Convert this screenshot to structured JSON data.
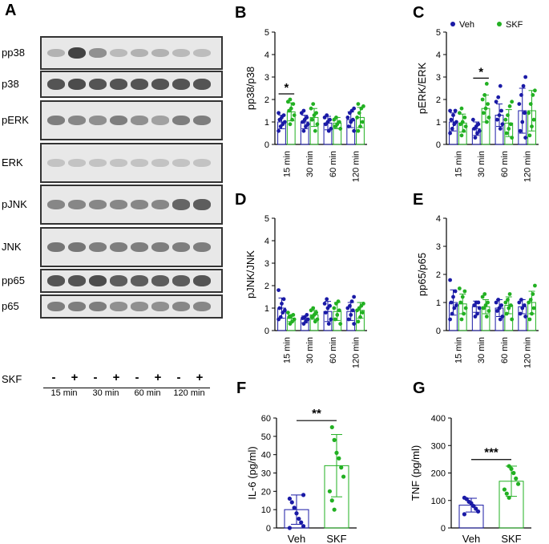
{
  "colors": {
    "veh": "#1a1aa6",
    "skf": "#22b022"
  },
  "panel_a": {
    "label": "A",
    "rows": [
      {
        "name": "pp38",
        "bands": [
          0.25,
          0.9,
          0.45,
          0.2,
          0.25,
          0.25,
          0.2,
          0.18
        ]
      },
      {
        "name": "p38",
        "bands": [
          0.8,
          0.85,
          0.8,
          0.8,
          0.8,
          0.8,
          0.8,
          0.8
        ]
      },
      {
        "name": "pERK",
        "bands": [
          0.55,
          0.5,
          0.45,
          0.55,
          0.45,
          0.35,
          0.55,
          0.55
        ]
      },
      {
        "name": "ERK",
        "bands": [
          0.15,
          0.15,
          0.15,
          0.15,
          0.15,
          0.15,
          0.15,
          0.15
        ]
      },
      {
        "name": "pJNK",
        "bands": [
          0.5,
          0.5,
          0.5,
          0.5,
          0.5,
          0.5,
          0.7,
          0.75
        ]
      },
      {
        "name": "JNK",
        "bands": [
          0.6,
          0.6,
          0.55,
          0.55,
          0.55,
          0.55,
          0.55,
          0.55
        ]
      },
      {
        "name": "pp65",
        "bands": [
          0.8,
          0.8,
          0.85,
          0.75,
          0.75,
          0.75,
          0.75,
          0.8
        ]
      },
      {
        "name": "p65",
        "bands": [
          0.55,
          0.55,
          0.55,
          0.45,
          0.45,
          0.45,
          0.5,
          0.5
        ]
      }
    ],
    "treatment_label": "SKF",
    "signs": [
      "-",
      "+",
      "-",
      "+",
      "-",
      "+",
      "-",
      "+"
    ],
    "timepoints": [
      "15 min",
      "30 min",
      "60 min",
      "120 min"
    ]
  },
  "chart_data": [
    {
      "panel": "B",
      "type": "bar",
      "ylabel": "pp38/p38",
      "ylim": [
        0,
        5
      ],
      "yticks": [
        0,
        1,
        2,
        3,
        4,
        5
      ],
      "categories": [
        "15 min",
        "30 min",
        "60 min",
        "120 min"
      ],
      "series": [
        {
          "name": "Veh",
          "values": [
            1.0,
            1.0,
            0.95,
            1.1
          ],
          "sd": [
            0.3,
            0.3,
            0.3,
            0.35
          ],
          "points": [
            [
              0.6,
              0.8,
              0.9,
              1.0,
              1.1,
              1.2,
              1.3,
              1.4
            ],
            [
              0.6,
              0.8,
              0.9,
              1.0,
              1.1,
              1.2,
              1.4,
              1.5
            ],
            [
              0.6,
              0.7,
              0.9,
              1.0,
              1.1,
              1.2,
              1.3
            ],
            [
              0.6,
              0.8,
              1.0,
              1.1,
              1.2,
              1.4,
              1.5,
              1.6
            ]
          ]
        },
        {
          "name": "SKF",
          "values": [
            1.45,
            1.2,
            0.95,
            1.2
          ],
          "sd": [
            0.4,
            0.4,
            0.25,
            0.45
          ],
          "points": [
            [
              0.9,
              1.1,
              1.3,
              1.5,
              1.6,
              1.8,
              1.9,
              2.0
            ],
            [
              0.6,
              0.9,
              1.1,
              1.3,
              1.4,
              1.6,
              1.8
            ],
            [
              0.7,
              0.8,
              0.9,
              1.0,
              1.1,
              1.2
            ],
            [
              0.6,
              0.8,
              1.0,
              1.2,
              1.4,
              1.6,
              1.7,
              1.8
            ]
          ]
        }
      ],
      "annotations": [
        {
          "text": "*",
          "group": 0
        }
      ]
    },
    {
      "panel": "C",
      "type": "bar",
      "ylabel": "pERK/ERK",
      "ylim": [
        0,
        5
      ],
      "yticks": [
        0,
        1,
        2,
        3,
        4,
        5
      ],
      "categories": [
        "15 min",
        "30 min",
        "60 min",
        "120 min"
      ],
      "legend": {
        "position": "top",
        "entries": [
          "Veh",
          "SKF"
        ]
      },
      "series": [
        {
          "name": "Veh",
          "values": [
            1.0,
            0.7,
            1.3,
            1.5
          ],
          "sd": [
            0.4,
            0.3,
            0.5,
            1.0
          ],
          "points": [
            [
              0.5,
              0.7,
              0.9,
              1.0,
              1.1,
              1.3,
              1.5,
              1.5
            ],
            [
              0.3,
              0.5,
              0.6,
              0.7,
              0.8,
              0.9,
              1.1
            ],
            [
              0.7,
              0.9,
              1.1,
              1.3,
              1.5,
              1.9,
              2.1,
              2.6
            ],
            [
              0.3,
              0.6,
              1.0,
              1.4,
              1.8,
              2.2,
              2.6,
              3.0
            ]
          ]
        },
        {
          "name": "SKF",
          "values": [
            0.95,
            1.6,
            0.95,
            1.5
          ],
          "sd": [
            0.4,
            0.6,
            0.6,
            0.9
          ],
          "points": [
            [
              0.4,
              0.6,
              0.8,
              0.9,
              1.0,
              1.2,
              1.4,
              1.6
            ],
            [
              1.0,
              1.2,
              1.4,
              1.6,
              1.8,
              2.0,
              2.2,
              2.7
            ],
            [
              0.3,
              0.5,
              0.7,
              0.9,
              1.1,
              1.3,
              1.7,
              1.9
            ],
            [
              0.4,
              0.8,
              1.1,
              1.4,
              1.8,
              2.2,
              2.4
            ]
          ]
        }
      ],
      "annotations": [
        {
          "text": "*",
          "group": 1
        }
      ]
    },
    {
      "panel": "D",
      "type": "bar",
      "ylabel": "pJNK/JNK",
      "ylim": [
        0,
        5
      ],
      "yticks": [
        0,
        1,
        2,
        3,
        4,
        5
      ],
      "categories": [
        "15 min",
        "30 min",
        "60 min",
        "120 min"
      ],
      "series": [
        {
          "name": "Veh",
          "values": [
            1.0,
            0.5,
            0.85,
            0.85
          ],
          "sd": [
            0.45,
            0.15,
            0.45,
            0.4
          ],
          "points": [
            [
              0.5,
              0.6,
              0.8,
              0.9,
              1.0,
              1.2,
              1.4,
              1.8
            ],
            [
              0.3,
              0.4,
              0.5,
              0.55,
              0.6,
              0.7
            ],
            [
              0.3,
              0.5,
              0.8,
              1.0,
              1.1,
              1.2,
              1.4
            ],
            [
              0.3,
              0.5,
              0.7,
              0.9,
              1.0,
              1.1,
              1.3,
              1.5
            ]
          ]
        },
        {
          "name": "SKF",
          "values": [
            0.55,
            0.7,
            0.85,
            0.9
          ],
          "sd": [
            0.15,
            0.2,
            0.4,
            0.35
          ],
          "points": [
            [
              0.3,
              0.4,
              0.5,
              0.6,
              0.65,
              0.7,
              0.8
            ],
            [
              0.4,
              0.5,
              0.6,
              0.7,
              0.8,
              0.9,
              1.0
            ],
            [
              0.3,
              0.5,
              0.7,
              0.9,
              1.0,
              1.2,
              1.3
            ],
            [
              0.4,
              0.6,
              0.8,
              0.9,
              1.0,
              1.1,
              1.2
            ]
          ]
        }
      ]
    },
    {
      "panel": "E",
      "type": "bar",
      "ylabel": "pp65/p65",
      "ylim": [
        0,
        4
      ],
      "yticks": [
        0,
        1,
        2,
        3,
        4
      ],
      "categories": [
        "15 min",
        "30 min",
        "60 min",
        "120 min"
      ],
      "series": [
        {
          "name": "Veh",
          "values": [
            1.0,
            0.85,
            0.8,
            0.85
          ],
          "sd": [
            0.45,
            0.2,
            0.3,
            0.25
          ],
          "points": [
            [
              0.4,
              0.6,
              0.8,
              0.9,
              1.0,
              1.2,
              1.4,
              1.8
            ],
            [
              0.5,
              0.6,
              0.8,
              0.9,
              1.0,
              1.0
            ],
            [
              0.4,
              0.5,
              0.7,
              0.8,
              0.9,
              1.0,
              1.1
            ],
            [
              0.5,
              0.6,
              0.8,
              0.9,
              1.0,
              1.1
            ]
          ]
        },
        {
          "name": "SKF",
          "values": [
            0.95,
            0.85,
            0.9,
            1.0
          ],
          "sd": [
            0.35,
            0.25,
            0.3,
            0.4
          ],
          "points": [
            [
              0.4,
              0.6,
              0.8,
              1.0,
              1.2,
              1.4,
              1.5
            ],
            [
              0.5,
              0.7,
              0.8,
              0.9,
              1.0,
              1.2,
              1.3
            ],
            [
              0.4,
              0.6,
              0.8,
              0.9,
              1.0,
              1.1,
              1.3
            ],
            [
              0.4,
              0.6,
              0.8,
              1.0,
              1.1,
              1.3,
              1.6
            ]
          ]
        }
      ]
    },
    {
      "panel": "F",
      "type": "bar",
      "ylabel": "IL-6 (pg/ml)",
      "ylim": [
        0,
        60
      ],
      "yticks": [
        0,
        10,
        20,
        30,
        40,
        50,
        60
      ],
      "categories": [
        "Veh",
        "SKF"
      ],
      "values": [
        10,
        34
      ],
      "sd": [
        8,
        17
      ],
      "points": [
        [
          0,
          1,
          3,
          5,
          8,
          11,
          14,
          16,
          18
        ],
        [
          10,
          15,
          20,
          28,
          33,
          38,
          41,
          48,
          55
        ]
      ],
      "annotations": [
        {
          "text": "**"
        }
      ]
    },
    {
      "panel": "G",
      "type": "bar",
      "ylabel": "TNF (pg/ml)",
      "ylim": [
        0,
        400
      ],
      "yticks": [
        0,
        100,
        200,
        300,
        400
      ],
      "categories": [
        "Veh",
        "SKF"
      ],
      "values": [
        83,
        170
      ],
      "sd": [
        25,
        55
      ],
      "points": [
        [
          50,
          60,
          70,
          80,
          90,
          95,
          105,
          110
        ],
        [
          110,
          125,
          140,
          160,
          180,
          200,
          215,
          225
        ]
      ],
      "annotations": [
        {
          "text": "***"
        }
      ]
    }
  ]
}
